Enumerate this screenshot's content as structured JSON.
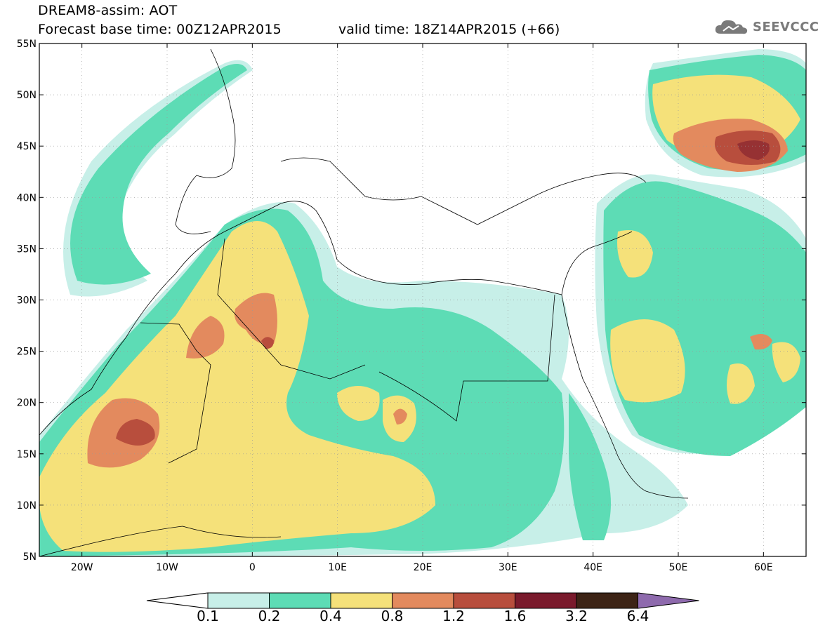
{
  "header": {
    "title_line1": "DREAM8-assim: AOT",
    "title_line2": "Forecast base time: 00Z12APR2015",
    "valid_time": "valid time: 18Z14APR2015 (+66)"
  },
  "logo": {
    "text": "SEEVCCC",
    "icon": "cloud-icon"
  },
  "map": {
    "lon_range": [
      -25,
      65
    ],
    "lat_range": [
      5,
      55
    ],
    "lat_ticks": [
      {
        "v": 55,
        "label": "55N"
      },
      {
        "v": 50,
        "label": "50N"
      },
      {
        "v": 45,
        "label": "45N"
      },
      {
        "v": 40,
        "label": "40N"
      },
      {
        "v": 35,
        "label": "35N"
      },
      {
        "v": 30,
        "label": "30N"
      },
      {
        "v": 25,
        "label": "25N"
      },
      {
        "v": 20,
        "label": "20N"
      },
      {
        "v": 15,
        "label": "15N"
      },
      {
        "v": 10,
        "label": "10N"
      },
      {
        "v": 5,
        "label": "5N"
      }
    ],
    "lon_ticks": [
      {
        "v": -20,
        "label": "20W"
      },
      {
        "v": -10,
        "label": "10W"
      },
      {
        "v": 0,
        "label": "0"
      },
      {
        "v": 10,
        "label": "10E"
      },
      {
        "v": 20,
        "label": "20E"
      },
      {
        "v": 30,
        "label": "30E"
      },
      {
        "v": 40,
        "label": "40E"
      },
      {
        "v": 50,
        "label": "50E"
      },
      {
        "v": 60,
        "label": "60E"
      }
    ],
    "grid": true
  },
  "colorbar": {
    "labels": [
      "0.1",
      "0.2",
      "0.4",
      "0.8",
      "1.2",
      "1.6",
      "3.2",
      "6.4"
    ],
    "colors": [
      "#ffffff",
      "#c7efe8",
      "#5ddcb5",
      "#f5e17a",
      "#e38a5e",
      "#b84e3d",
      "#7a1a2c",
      "#3d2416",
      "#8e6aad"
    ]
  }
}
